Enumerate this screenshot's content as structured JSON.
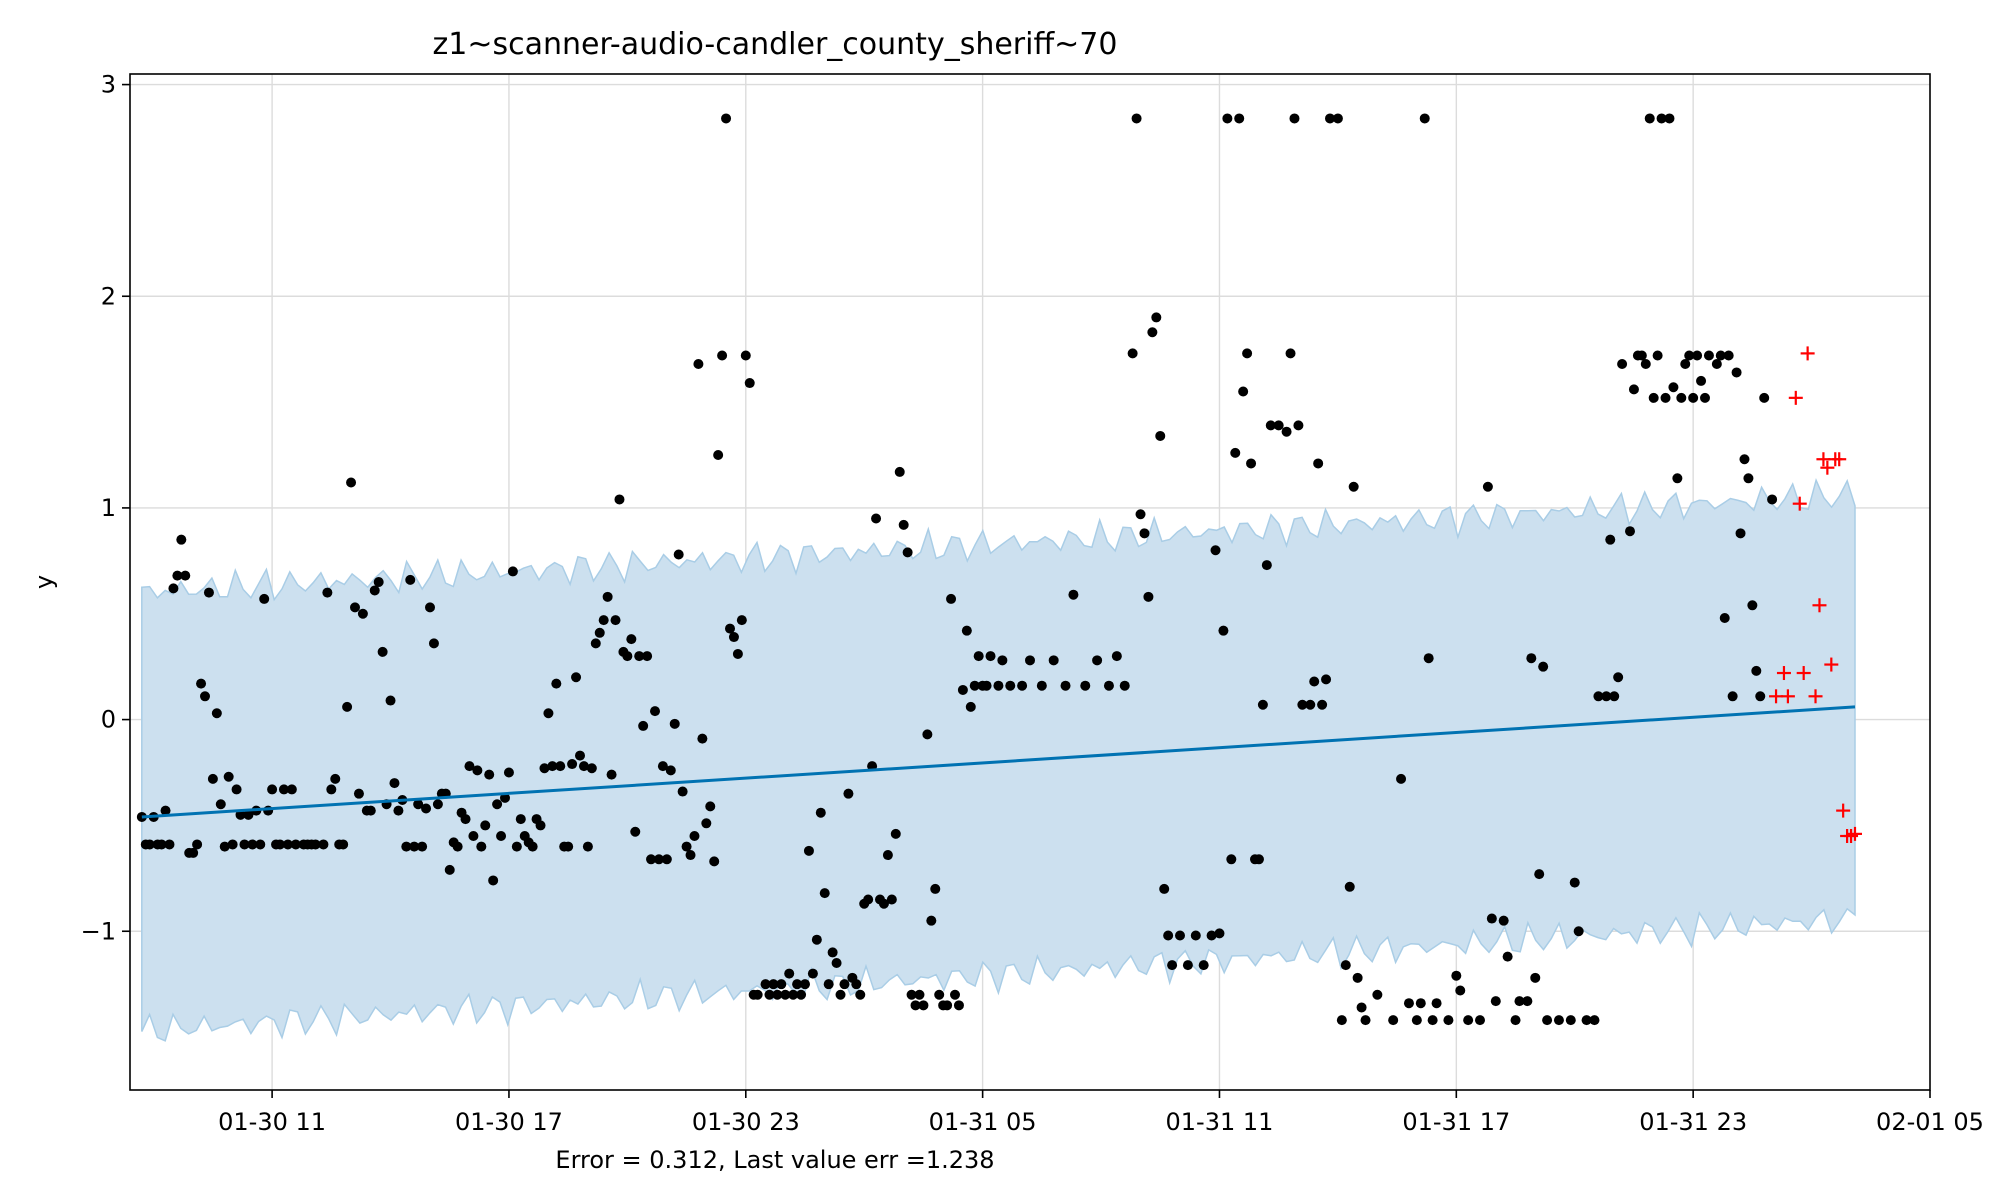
{
  "chart_data": {
    "type": "scatter",
    "title": "z1~scanner-audio-candler_county_sheriff~70",
    "xlabel": "Error = 0.312, Last value err =1.238",
    "ylabel": "y",
    "x_unit": "hours since 01-30 00:00",
    "xlim": [
      7.4,
      53.0
    ],
    "ylim": [
      -1.75,
      3.05
    ],
    "x_ticks": [
      {
        "value": 11,
        "label": "01-30 11"
      },
      {
        "value": 17,
        "label": "01-30 17"
      },
      {
        "value": 23,
        "label": "01-30 23"
      },
      {
        "value": 29,
        "label": "01-31 05"
      },
      {
        "value": 35,
        "label": "01-31 11"
      },
      {
        "value": 41,
        "label": "01-31 17"
      },
      {
        "value": 47,
        "label": "01-31 23"
      },
      {
        "value": 53,
        "label": "02-01 05"
      }
    ],
    "y_ticks": [
      {
        "value": -1,
        "label": "−1"
      },
      {
        "value": 0,
        "label": "0"
      },
      {
        "value": 1,
        "label": "1"
      },
      {
        "value": 2,
        "label": "2"
      },
      {
        "value": 3,
        "label": "3"
      }
    ],
    "grid": true,
    "colors": {
      "band": "#cce0ef",
      "band_edge": "#a9cde6",
      "trend": "#0072b2",
      "observed": "#000000",
      "holdout": "#ff0000"
    },
    "forecast": {
      "x": [
        7.7,
        51.1
      ],
      "yhat": [
        -0.46,
        0.06
      ],
      "band_upper": [
        0.6,
        1.06
      ],
      "band_lower": [
        -1.47,
        -0.94
      ]
    },
    "observed": [
      [
        7.7,
        -0.46
      ],
      [
        7.8,
        -0.59
      ],
      [
        7.9,
        -0.59
      ],
      [
        8.0,
        -0.46
      ],
      [
        8.1,
        -0.59
      ],
      [
        8.2,
        -0.59
      ],
      [
        8.3,
        -0.43
      ],
      [
        8.4,
        -0.59
      ],
      [
        8.5,
        0.62
      ],
      [
        8.6,
        0.68
      ],
      [
        8.7,
        0.85
      ],
      [
        8.8,
        0.68
      ],
      [
        8.9,
        -0.63
      ],
      [
        9.0,
        -0.63
      ],
      [
        9.1,
        -0.59
      ],
      [
        9.2,
        0.17
      ],
      [
        9.3,
        0.11
      ],
      [
        9.4,
        0.6
      ],
      [
        9.5,
        -0.28
      ],
      [
        9.6,
        0.03
      ],
      [
        9.7,
        -0.4
      ],
      [
        9.8,
        -0.6
      ],
      [
        9.9,
        -0.27
      ],
      [
        10.0,
        -0.59
      ],
      [
        10.1,
        -0.33
      ],
      [
        10.2,
        -0.45
      ],
      [
        10.3,
        -0.59
      ],
      [
        10.4,
        -0.45
      ],
      [
        10.5,
        -0.59
      ],
      [
        10.6,
        -0.43
      ],
      [
        10.7,
        -0.59
      ],
      [
        10.8,
        0.57
      ],
      [
        10.9,
        -0.43
      ],
      [
        11.0,
        -0.33
      ],
      [
        11.1,
        -0.59
      ],
      [
        11.2,
        -0.59
      ],
      [
        11.3,
        -0.33
      ],
      [
        11.4,
        -0.59
      ],
      [
        11.5,
        -0.33
      ],
      [
        11.6,
        -0.59
      ],
      [
        11.8,
        -0.59
      ],
      [
        11.9,
        -0.59
      ],
      [
        12.0,
        -0.59
      ],
      [
        12.1,
        -0.59
      ],
      [
        12.3,
        -0.59
      ],
      [
        12.4,
        0.6
      ],
      [
        12.5,
        -0.33
      ],
      [
        12.6,
        -0.28
      ],
      [
        12.7,
        -0.59
      ],
      [
        12.8,
        -0.59
      ],
      [
        12.9,
        0.06
      ],
      [
        13.0,
        1.12
      ],
      [
        13.1,
        0.53
      ],
      [
        13.2,
        -0.35
      ],
      [
        13.3,
        0.5
      ],
      [
        13.4,
        -0.43
      ],
      [
        13.5,
        -0.43
      ],
      [
        13.6,
        0.61
      ],
      [
        13.7,
        0.65
      ],
      [
        13.8,
        0.32
      ],
      [
        13.9,
        -0.4
      ],
      [
        14.0,
        0.09
      ],
      [
        14.1,
        -0.3
      ],
      [
        14.2,
        -0.43
      ],
      [
        14.3,
        -0.38
      ],
      [
        14.4,
        -0.6
      ],
      [
        14.5,
        0.66
      ],
      [
        14.6,
        -0.6
      ],
      [
        14.7,
        -0.4
      ],
      [
        14.8,
        -0.6
      ],
      [
        14.9,
        -0.42
      ],
      [
        15.0,
        0.53
      ],
      [
        15.1,
        0.36
      ],
      [
        15.2,
        -0.4
      ],
      [
        15.3,
        -0.35
      ],
      [
        15.4,
        -0.35
      ],
      [
        15.5,
        -0.71
      ],
      [
        15.6,
        -0.58
      ],
      [
        15.7,
        -0.6
      ],
      [
        15.8,
        -0.44
      ],
      [
        15.9,
        -0.47
      ],
      [
        16.0,
        -0.22
      ],
      [
        16.1,
        -0.55
      ],
      [
        16.2,
        -0.24
      ],
      [
        16.3,
        -0.6
      ],
      [
        16.4,
        -0.5
      ],
      [
        16.5,
        -0.26
      ],
      [
        16.6,
        -0.76
      ],
      [
        16.7,
        -0.4
      ],
      [
        16.8,
        -0.55
      ],
      [
        16.9,
        -0.37
      ],
      [
        17.0,
        -0.25
      ],
      [
        17.1,
        0.7
      ],
      [
        17.2,
        -0.6
      ],
      [
        17.3,
        -0.47
      ],
      [
        17.4,
        -0.55
      ],
      [
        17.5,
        -0.58
      ],
      [
        17.6,
        -0.6
      ],
      [
        17.7,
        -0.47
      ],
      [
        17.8,
        -0.5
      ],
      [
        17.9,
        -0.23
      ],
      [
        18.0,
        0.03
      ],
      [
        18.1,
        -0.22
      ],
      [
        18.2,
        0.17
      ],
      [
        18.3,
        -0.22
      ],
      [
        18.4,
        -0.6
      ],
      [
        18.5,
        -0.6
      ],
      [
        18.6,
        -0.21
      ],
      [
        18.7,
        0.2
      ],
      [
        18.8,
        -0.17
      ],
      [
        18.9,
        -0.22
      ],
      [
        19.0,
        -0.6
      ],
      [
        19.1,
        -0.23
      ],
      [
        19.2,
        0.36
      ],
      [
        19.3,
        0.41
      ],
      [
        19.4,
        0.47
      ],
      [
        19.5,
        0.58
      ],
      [
        19.6,
        -0.26
      ],
      [
        19.7,
        0.47
      ],
      [
        19.8,
        1.04
      ],
      [
        19.9,
        0.32
      ],
      [
        20.0,
        0.3
      ],
      [
        20.1,
        0.38
      ],
      [
        20.2,
        -0.53
      ],
      [
        20.3,
        0.3
      ],
      [
        20.4,
        -0.03
      ],
      [
        20.5,
        0.3
      ],
      [
        20.6,
        -0.66
      ],
      [
        20.7,
        0.04
      ],
      [
        20.8,
        -0.66
      ],
      [
        20.9,
        -0.22
      ],
      [
        21.0,
        -0.66
      ],
      [
        21.1,
        -0.24
      ],
      [
        21.2,
        -0.02
      ],
      [
        21.3,
        0.78
      ],
      [
        21.4,
        -0.34
      ],
      [
        21.5,
        -0.6
      ],
      [
        21.6,
        -0.64
      ],
      [
        21.7,
        -0.55
      ],
      [
        21.8,
        1.68
      ],
      [
        21.9,
        -0.09
      ],
      [
        22.0,
        -0.49
      ],
      [
        22.1,
        -0.41
      ],
      [
        22.2,
        -0.67
      ],
      [
        22.3,
        1.25
      ],
      [
        22.4,
        1.72
      ],
      [
        22.5,
        2.84
      ],
      [
        22.6,
        0.43
      ],
      [
        22.7,
        0.39
      ],
      [
        22.8,
        0.31
      ],
      [
        22.9,
        0.47
      ],
      [
        23.0,
        1.72
      ],
      [
        23.1,
        1.59
      ],
      [
        23.2,
        -1.3
      ],
      [
        23.3,
        -1.3
      ],
      [
        23.5,
        -1.25
      ],
      [
        23.6,
        -1.3
      ],
      [
        23.7,
        -1.25
      ],
      [
        23.8,
        -1.3
      ],
      [
        23.9,
        -1.25
      ],
      [
        24.0,
        -1.3
      ],
      [
        24.1,
        -1.2
      ],
      [
        24.2,
        -1.3
      ],
      [
        24.3,
        -1.25
      ],
      [
        24.4,
        -1.3
      ],
      [
        24.5,
        -1.25
      ],
      [
        24.6,
        -0.62
      ],
      [
        24.7,
        -1.2
      ],
      [
        24.8,
        -1.04
      ],
      [
        24.9,
        -0.44
      ],
      [
        25.0,
        -0.82
      ],
      [
        25.1,
        -1.25
      ],
      [
        25.2,
        -1.1
      ],
      [
        25.3,
        -1.15
      ],
      [
        25.4,
        -1.3
      ],
      [
        25.5,
        -1.25
      ],
      [
        25.6,
        -0.35
      ],
      [
        25.7,
        -1.22
      ],
      [
        25.8,
        -1.25
      ],
      [
        25.9,
        -1.3
      ],
      [
        26.0,
        -0.87
      ],
      [
        26.1,
        -0.85
      ],
      [
        26.2,
        -0.22
      ],
      [
        26.3,
        0.95
      ],
      [
        26.4,
        -0.85
      ],
      [
        26.5,
        -0.87
      ],
      [
        26.6,
        -0.64
      ],
      [
        26.7,
        -0.85
      ],
      [
        26.8,
        -0.54
      ],
      [
        26.9,
        1.17
      ],
      [
        27.0,
        0.92
      ],
      [
        27.1,
        0.79
      ],
      [
        27.2,
        -1.3
      ],
      [
        27.3,
        -1.35
      ],
      [
        27.4,
        -1.3
      ],
      [
        27.5,
        -1.35
      ],
      [
        27.6,
        -0.07
      ],
      [
        27.7,
        -0.95
      ],
      [
        27.8,
        -0.8
      ],
      [
        27.9,
        -1.3
      ],
      [
        28.0,
        -1.35
      ],
      [
        28.1,
        -1.35
      ],
      [
        28.2,
        0.57
      ],
      [
        28.3,
        -1.3
      ],
      [
        28.4,
        -1.35
      ],
      [
        28.5,
        0.14
      ],
      [
        28.6,
        0.42
      ],
      [
        28.7,
        0.06
      ],
      [
        28.8,
        0.16
      ],
      [
        28.9,
        0.3
      ],
      [
        29.0,
        0.16
      ],
      [
        29.1,
        0.16
      ],
      [
        29.2,
        0.3
      ],
      [
        29.4,
        0.16
      ],
      [
        29.5,
        0.28
      ],
      [
        29.7,
        0.16
      ],
      [
        30.0,
        0.16
      ],
      [
        30.2,
        0.28
      ],
      [
        30.5,
        0.16
      ],
      [
        30.8,
        0.28
      ],
      [
        31.1,
        0.16
      ],
      [
        31.3,
        0.59
      ],
      [
        31.6,
        0.16
      ],
      [
        31.9,
        0.28
      ],
      [
        32.2,
        0.16
      ],
      [
        32.4,
        0.3
      ],
      [
        32.6,
        0.16
      ],
      [
        32.8,
        1.73
      ],
      [
        32.9,
        2.84
      ],
      [
        33.0,
        0.97
      ],
      [
        33.1,
        0.88
      ],
      [
        33.2,
        0.58
      ],
      [
        33.3,
        1.83
      ],
      [
        33.4,
        1.9
      ],
      [
        33.5,
        1.34
      ],
      [
        33.6,
        -0.8
      ],
      [
        33.7,
        -1.02
      ],
      [
        33.8,
        -1.16
      ],
      [
        34.0,
        -1.02
      ],
      [
        34.2,
        -1.16
      ],
      [
        34.4,
        -1.02
      ],
      [
        34.6,
        -1.16
      ],
      [
        34.8,
        -1.02
      ],
      [
        34.9,
        0.8
      ],
      [
        35.0,
        -1.01
      ],
      [
        35.1,
        0.42
      ],
      [
        35.2,
        2.84
      ],
      [
        35.3,
        -0.66
      ],
      [
        35.4,
        1.26
      ],
      [
        35.5,
        2.84
      ],
      [
        35.6,
        1.55
      ],
      [
        35.7,
        1.73
      ],
      [
        35.8,
        1.21
      ],
      [
        35.9,
        -0.66
      ],
      [
        36.0,
        -0.66
      ],
      [
        36.1,
        0.07
      ],
      [
        36.2,
        0.73
      ],
      [
        36.3,
        1.39
      ],
      [
        36.5,
        1.39
      ],
      [
        36.7,
        1.36
      ],
      [
        36.8,
        1.73
      ],
      [
        36.9,
        2.84
      ],
      [
        37.0,
        1.39
      ],
      [
        37.1,
        0.07
      ],
      [
        37.3,
        0.07
      ],
      [
        37.4,
        0.18
      ],
      [
        37.5,
        1.21
      ],
      [
        37.6,
        0.07
      ],
      [
        37.7,
        0.19
      ],
      [
        37.8,
        2.84
      ],
      [
        38.0,
        2.84
      ],
      [
        38.1,
        -1.42
      ],
      [
        38.2,
        -1.16
      ],
      [
        38.3,
        -0.79
      ],
      [
        38.4,
        1.1
      ],
      [
        38.5,
        -1.22
      ],
      [
        38.6,
        -1.36
      ],
      [
        38.7,
        -1.42
      ],
      [
        39.0,
        -1.3
      ],
      [
        39.4,
        -1.42
      ],
      [
        39.6,
        -0.28
      ],
      [
        39.8,
        -1.34
      ],
      [
        40.0,
        -1.42
      ],
      [
        40.1,
        -1.34
      ],
      [
        40.2,
        2.84
      ],
      [
        40.3,
        0.29
      ],
      [
        40.4,
        -1.42
      ],
      [
        40.5,
        -1.34
      ],
      [
        40.8,
        -1.42
      ],
      [
        41.0,
        -1.21
      ],
      [
        41.1,
        -1.28
      ],
      [
        41.3,
        -1.42
      ],
      [
        41.6,
        -1.42
      ],
      [
        41.8,
        1.1
      ],
      [
        41.9,
        -0.94
      ],
      [
        42.0,
        -1.33
      ],
      [
        42.2,
        -0.95
      ],
      [
        42.3,
        -1.12
      ],
      [
        42.5,
        -1.42
      ],
      [
        42.6,
        -1.33
      ],
      [
        42.8,
        -1.33
      ],
      [
        42.9,
        0.29
      ],
      [
        43.0,
        -1.22
      ],
      [
        43.1,
        -0.73
      ],
      [
        43.2,
        0.25
      ],
      [
        43.3,
        -1.42
      ],
      [
        43.6,
        -1.42
      ],
      [
        43.9,
        -1.42
      ],
      [
        44.0,
        -0.77
      ],
      [
        44.1,
        -1.0
      ],
      [
        44.3,
        -1.42
      ],
      [
        44.5,
        -1.42
      ],
      [
        44.6,
        0.11
      ],
      [
        44.8,
        0.11
      ],
      [
        44.9,
        0.85
      ],
      [
        45.0,
        0.11
      ],
      [
        45.1,
        0.2
      ],
      [
        45.2,
        1.68
      ],
      [
        45.4,
        0.89
      ],
      [
        45.5,
        1.56
      ],
      [
        45.6,
        1.72
      ],
      [
        45.7,
        1.72
      ],
      [
        45.8,
        1.68
      ],
      [
        45.9,
        2.84
      ],
      [
        46.0,
        1.52
      ],
      [
        46.1,
        1.72
      ],
      [
        46.2,
        2.84
      ],
      [
        46.3,
        1.52
      ],
      [
        46.4,
        2.84
      ],
      [
        46.5,
        1.57
      ],
      [
        46.6,
        1.14
      ],
      [
        46.7,
        1.52
      ],
      [
        46.8,
        1.68
      ],
      [
        46.9,
        1.72
      ],
      [
        47.0,
        1.52
      ],
      [
        47.1,
        1.72
      ],
      [
        47.2,
        1.6
      ],
      [
        47.3,
        1.52
      ],
      [
        47.4,
        1.72
      ],
      [
        47.6,
        1.68
      ],
      [
        47.7,
        1.72
      ],
      [
        47.8,
        0.48
      ],
      [
        47.9,
        1.72
      ],
      [
        48.0,
        0.11
      ],
      [
        48.1,
        1.64
      ],
      [
        48.2,
        0.88
      ],
      [
        48.3,
        1.23
      ],
      [
        48.4,
        1.14
      ],
      [
        48.5,
        0.54
      ],
      [
        48.6,
        0.23
      ],
      [
        48.7,
        0.11
      ],
      [
        48.8,
        1.52
      ],
      [
        49.0,
        1.04
      ]
    ],
    "holdout": [
      [
        49.1,
        0.11
      ],
      [
        49.3,
        0.22
      ],
      [
        49.4,
        0.11
      ],
      [
        49.6,
        1.52
      ],
      [
        49.7,
        1.02
      ],
      [
        49.8,
        0.22
      ],
      [
        49.9,
        1.73
      ],
      [
        50.1,
        0.11
      ],
      [
        50.2,
        0.54
      ],
      [
        50.3,
        1.23
      ],
      [
        50.4,
        1.19
      ],
      [
        50.5,
        0.26
      ],
      [
        50.6,
        1.23
      ],
      [
        50.7,
        1.23
      ],
      [
        50.8,
        -0.43
      ],
      [
        50.9,
        -0.55
      ],
      [
        51.0,
        -0.55
      ],
      [
        51.1,
        -0.54
      ]
    ]
  }
}
